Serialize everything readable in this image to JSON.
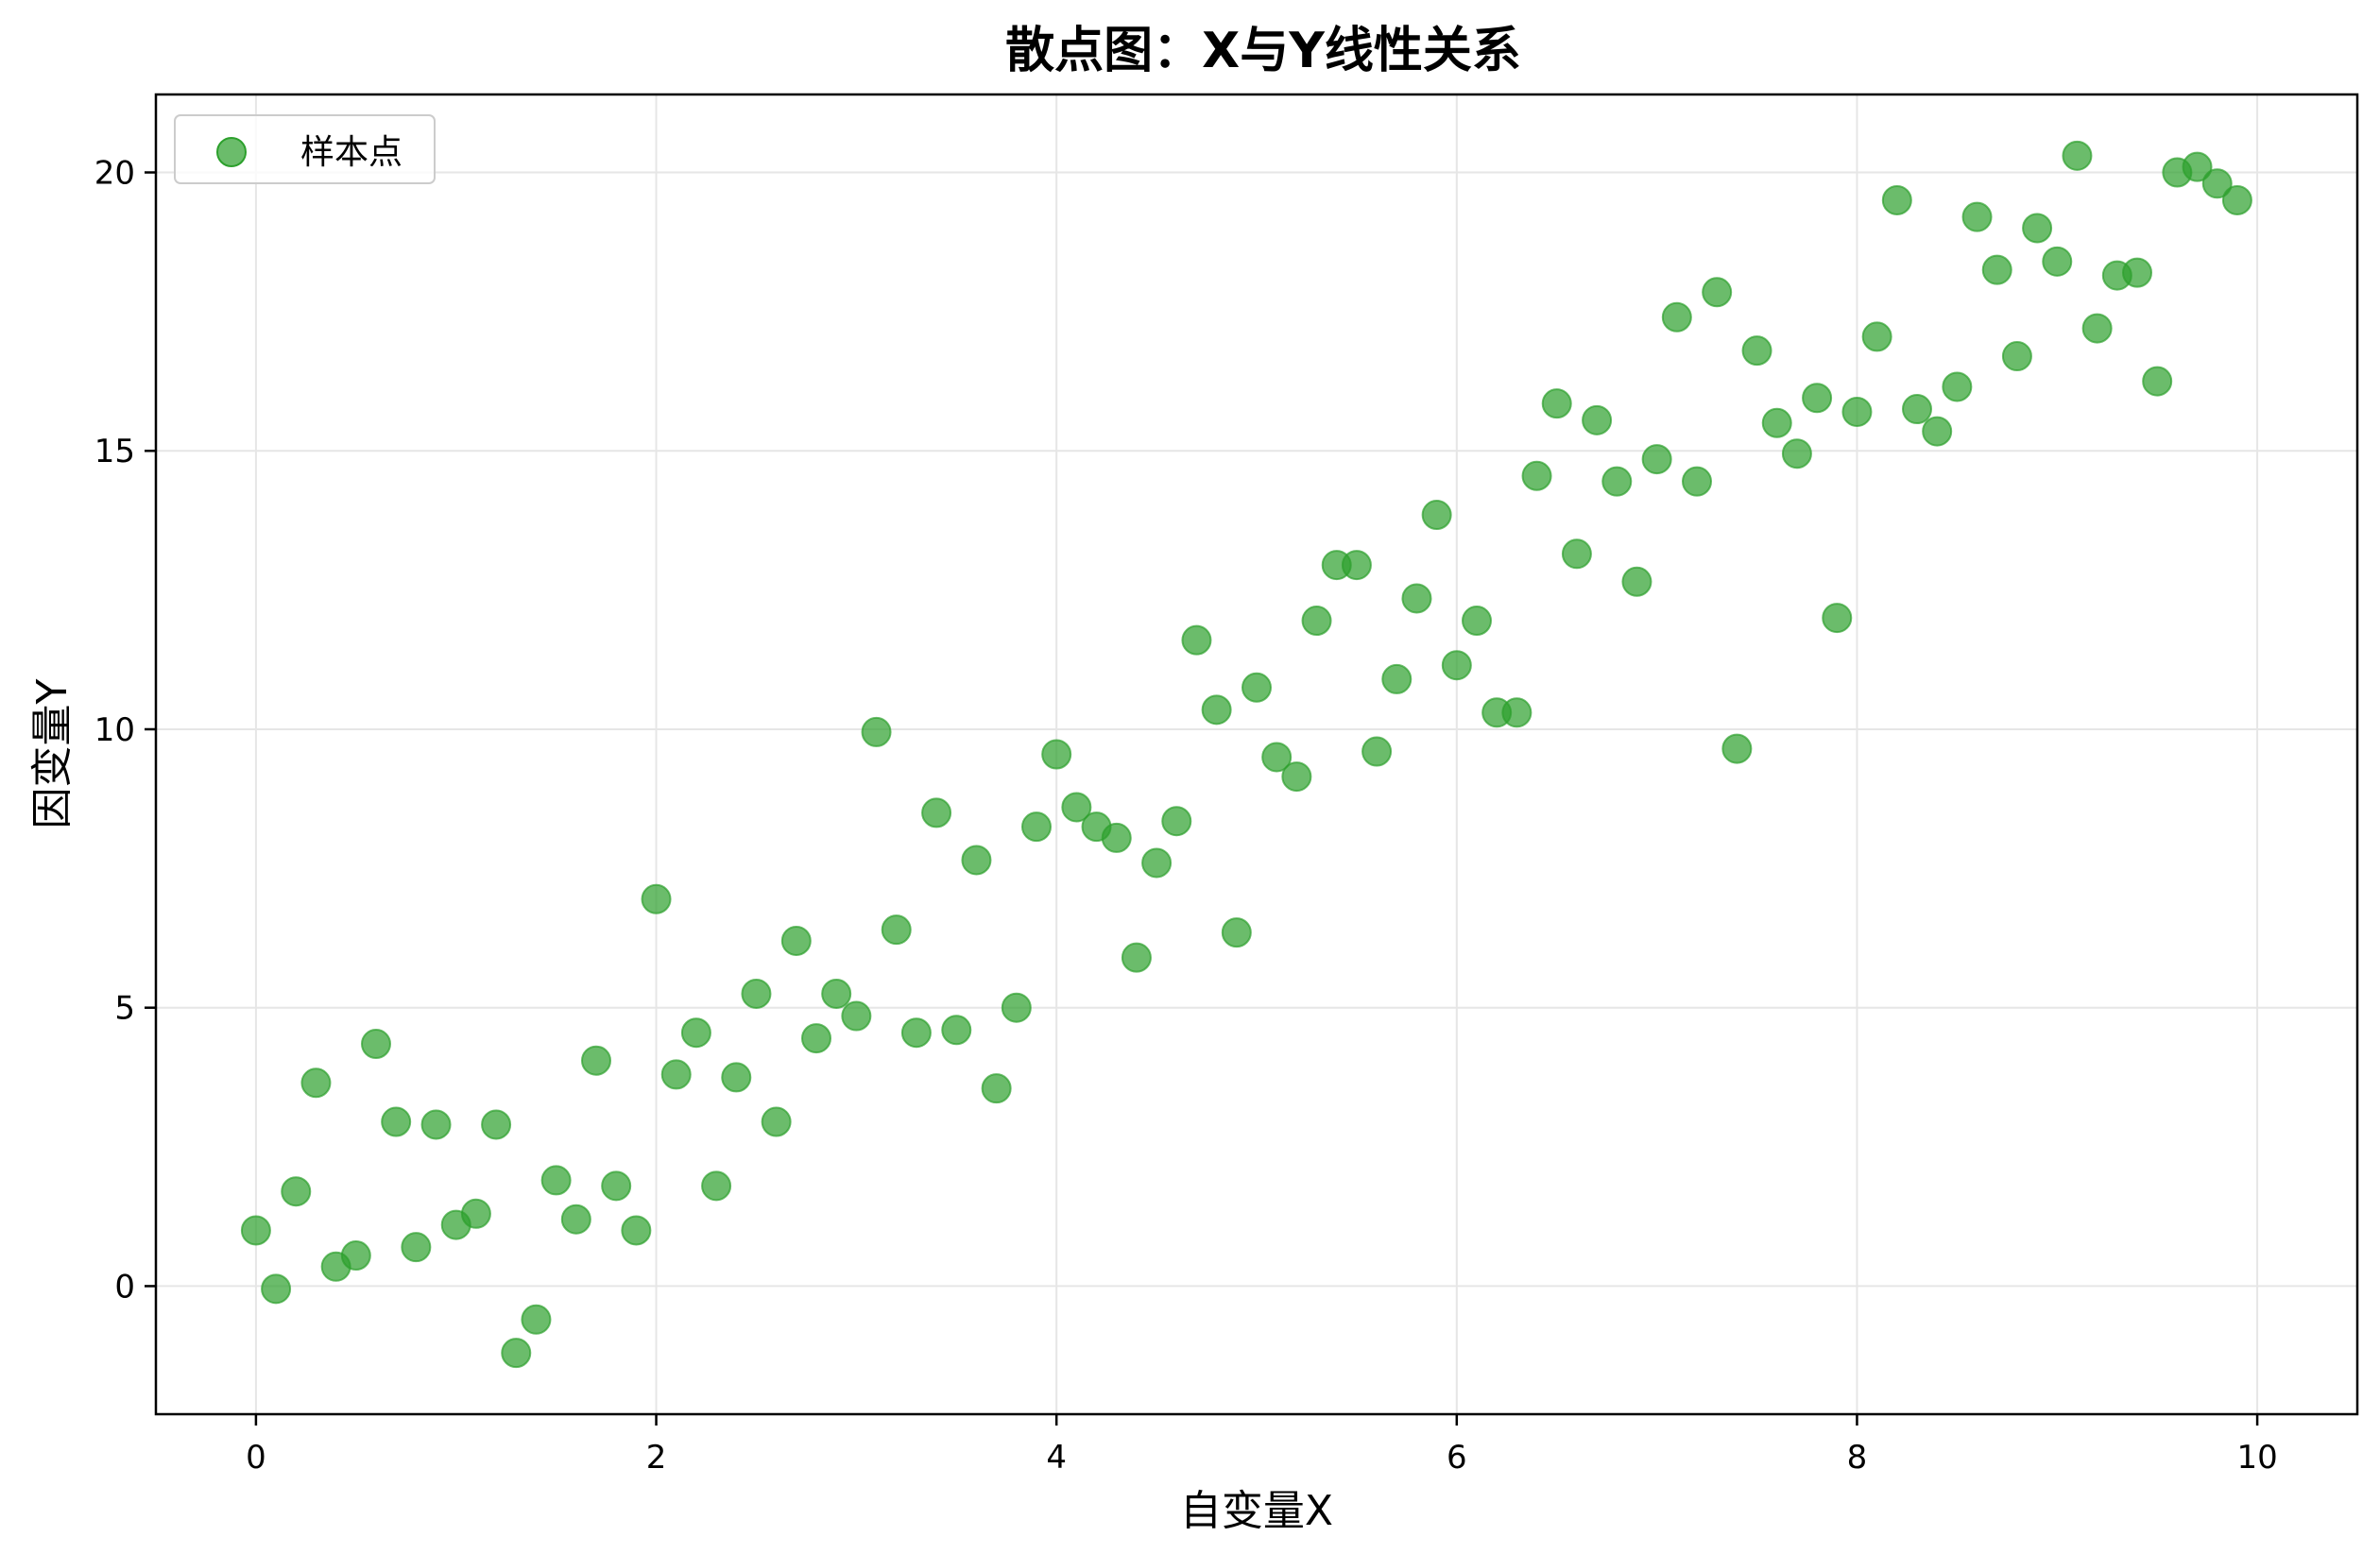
{
  "chart_data": {
    "type": "scatter",
    "title": "散点图：X与Y线性关系",
    "xlabel": "自变量X",
    "ylabel": "因变量Y",
    "xlim": [
      -0.5,
      10.5
    ],
    "ylim": [
      -2.3,
      21.4
    ],
    "xticks": [
      "0",
      "2",
      "4",
      "6",
      "8",
      "10"
    ],
    "yticks": [
      "0",
      "5",
      "10",
      "15",
      "20"
    ],
    "grid": true,
    "legend_position": "top-left",
    "series": [
      {
        "name": "样本点",
        "color": "#2ca02c",
        "points": [
          [
            0.0,
            1.0
          ],
          [
            0.1,
            -0.05
          ],
          [
            0.2,
            1.7
          ],
          [
            0.3,
            3.65
          ],
          [
            0.4,
            0.35
          ],
          [
            0.5,
            0.55
          ],
          [
            0.6,
            4.35
          ],
          [
            0.7,
            2.95
          ],
          [
            0.8,
            0.7
          ],
          [
            0.9,
            2.9
          ],
          [
            1.0,
            1.1
          ],
          [
            1.1,
            1.3
          ],
          [
            1.2,
            2.9
          ],
          [
            1.3,
            -1.2
          ],
          [
            1.4,
            -0.6
          ],
          [
            1.5,
            1.9
          ],
          [
            1.6,
            1.2
          ],
          [
            1.7,
            4.05
          ],
          [
            1.8,
            1.8
          ],
          [
            1.9,
            1.0
          ],
          [
            2.0,
            6.95
          ],
          [
            2.1,
            3.8
          ],
          [
            2.2,
            4.55
          ],
          [
            2.3,
            1.8
          ],
          [
            2.4,
            3.75
          ],
          [
            2.5,
            5.25
          ],
          [
            2.6,
            2.95
          ],
          [
            2.7,
            6.2
          ],
          [
            2.8,
            4.45
          ],
          [
            2.9,
            5.25
          ],
          [
            3.0,
            4.85
          ],
          [
            3.1,
            9.95
          ],
          [
            3.2,
            6.4
          ],
          [
            3.3,
            4.55
          ],
          [
            3.4,
            8.5
          ],
          [
            3.5,
            4.6
          ],
          [
            3.6,
            7.65
          ],
          [
            3.7,
            3.55
          ],
          [
            3.8,
            5.0
          ],
          [
            3.9,
            8.25
          ],
          [
            4.0,
            9.55
          ],
          [
            4.1,
            8.6
          ],
          [
            4.2,
            8.25
          ],
          [
            4.3,
            8.05
          ],
          [
            4.4,
            5.9
          ],
          [
            4.5,
            7.6
          ],
          [
            4.6,
            8.35
          ],
          [
            4.7,
            11.6
          ],
          [
            4.8,
            10.35
          ],
          [
            4.9,
            6.35
          ],
          [
            5.0,
            10.75
          ],
          [
            5.1,
            9.5
          ],
          [
            5.2,
            9.15
          ],
          [
            5.3,
            11.95
          ],
          [
            5.4,
            12.95
          ],
          [
            5.5,
            12.95
          ],
          [
            5.6,
            9.6
          ],
          [
            5.7,
            10.9
          ],
          [
            5.8,
            12.35
          ],
          [
            5.9,
            13.85
          ],
          [
            6.0,
            11.15
          ],
          [
            6.1,
            11.95
          ],
          [
            6.2,
            10.3
          ],
          [
            6.3,
            10.3
          ],
          [
            6.4,
            14.55
          ],
          [
            6.5,
            15.85
          ],
          [
            6.6,
            13.15
          ],
          [
            6.7,
            15.55
          ],
          [
            6.8,
            14.45
          ],
          [
            6.9,
            12.65
          ],
          [
            7.0,
            14.85
          ],
          [
            7.1,
            17.4
          ],
          [
            7.2,
            14.45
          ],
          [
            7.3,
            17.85
          ],
          [
            7.4,
            9.65
          ],
          [
            7.5,
            16.8
          ],
          [
            7.6,
            15.5
          ],
          [
            7.7,
            14.95
          ],
          [
            7.8,
            15.95
          ],
          [
            7.9,
            12.0
          ],
          [
            8.0,
            15.7
          ],
          [
            8.1,
            17.05
          ],
          [
            8.2,
            19.5
          ],
          [
            8.3,
            15.75
          ],
          [
            8.4,
            15.35
          ],
          [
            8.5,
            16.15
          ],
          [
            8.6,
            19.2
          ],
          [
            8.7,
            18.25
          ],
          [
            8.8,
            16.7
          ],
          [
            8.9,
            19.0
          ],
          [
            9.0,
            18.4
          ],
          [
            9.1,
            20.3
          ],
          [
            9.2,
            17.2
          ],
          [
            9.3,
            18.15
          ],
          [
            9.4,
            18.2
          ],
          [
            9.5,
            16.25
          ],
          [
            9.6,
            20.0
          ],
          [
            9.7,
            20.1
          ],
          [
            9.8,
            19.8
          ],
          [
            9.9,
            19.5
          ]
        ]
      }
    ]
  }
}
